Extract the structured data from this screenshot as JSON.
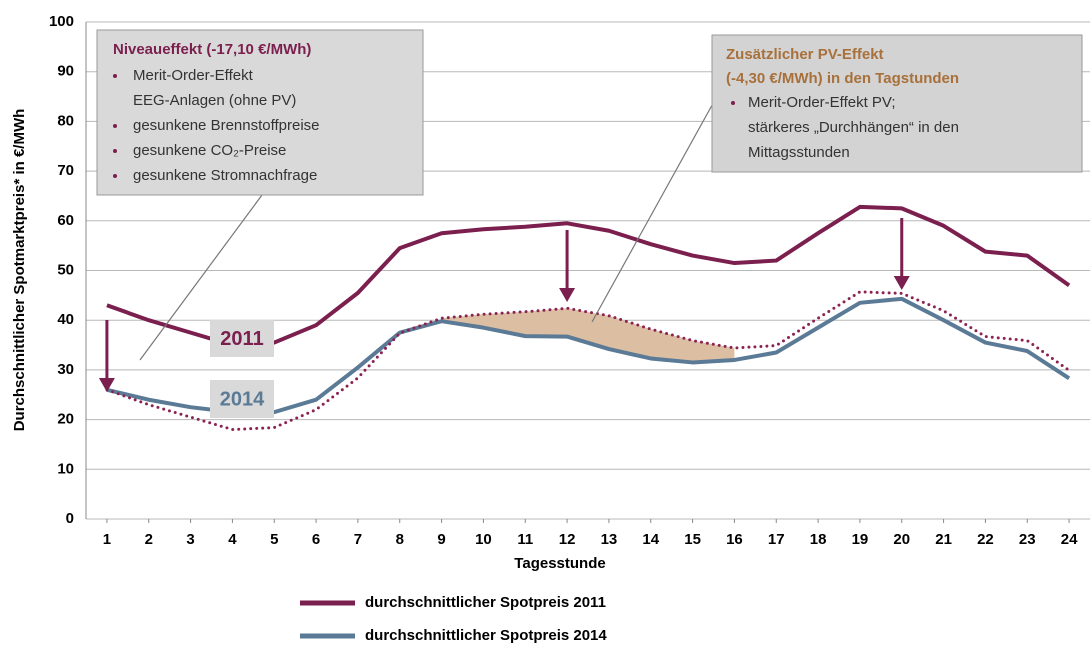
{
  "chart_data": {
    "type": "line",
    "y_label": "Durchschnittlicher Spotmarktpreis* in €/MWh",
    "x_label": "Tagesstunde",
    "x": [
      1,
      2,
      3,
      4,
      5,
      6,
      7,
      8,
      9,
      10,
      11,
      12,
      13,
      14,
      15,
      16,
      17,
      18,
      19,
      20,
      21,
      22,
      23,
      24
    ],
    "xlim": [
      0.5,
      24.5
    ],
    "xticks": [
      1,
      2,
      3,
      4,
      5,
      6,
      7,
      8,
      9,
      10,
      11,
      12,
      13,
      14,
      15,
      16,
      17,
      18,
      19,
      20,
      21,
      22,
      23,
      24
    ],
    "ylim": [
      0,
      100
    ],
    "yticks": [
      0,
      10,
      20,
      30,
      40,
      50,
      60,
      70,
      80,
      90,
      100
    ],
    "grid": true,
    "series": [
      {
        "name": "durchschnittlicher Spotpreis 2011",
        "color": "#7b1f4e",
        "values": [
          43,
          40,
          37.5,
          35,
          35.5,
          39,
          45.5,
          54.5,
          57.5,
          58.3,
          58.8,
          59.5,
          58,
          55.3,
          53,
          51.5,
          52,
          57.5,
          62.8,
          62.5,
          59,
          53.8,
          53,
          47
        ]
      },
      {
        "name": "durchschnittlicher Spotpreis 2014",
        "color": "#5a7a96",
        "values": [
          26,
          24,
          22.5,
          21.5,
          21.5,
          24,
          30.5,
          37.5,
          39.8,
          38.5,
          36.8,
          36.7,
          34.2,
          32.3,
          31.5,
          32,
          33.5,
          38.5,
          43.5,
          44.3,
          40,
          35.5,
          33.8,
          28.3
        ]
      },
      {
        "color": "#8b2352",
        "dotted": true,
        "values": [
          26,
          23,
          20.5,
          18,
          18.4,
          22,
          28.4,
          37.4,
          40.4,
          41.2,
          41.7,
          42.4,
          40.9,
          38.2,
          35.9,
          34.4,
          34.9,
          40.4,
          45.7,
          45.4,
          41.9,
          36.7,
          35.9,
          29.9
        ]
      }
    ],
    "line_labels": [
      "2011",
      "2014"
    ],
    "annotations": [
      {
        "title_lines": [
          "Niveaueffekt (-17,10 €/MWh)"
        ],
        "bullets": [
          [
            "Merit-Order-Effekt",
            "EEG-Anlagen (ohne PV)"
          ],
          [
            "gesunkene Brennstoffpreise"
          ],
          [
            "gesunkene CO₂-Preise"
          ],
          [
            "gesunkene Stromnachfrage"
          ]
        ]
      },
      {
        "title_lines": [
          "Zusätzlicher PV-Effekt",
          "(-4,30 €/MWh) in den Tagstunden"
        ],
        "bullets": [
          [
            "Merit-Order-Effekt PV;",
            "stärkeres „Durchhängen“ in den",
            "Mittagsstunden"
          ]
        ]
      }
    ]
  }
}
